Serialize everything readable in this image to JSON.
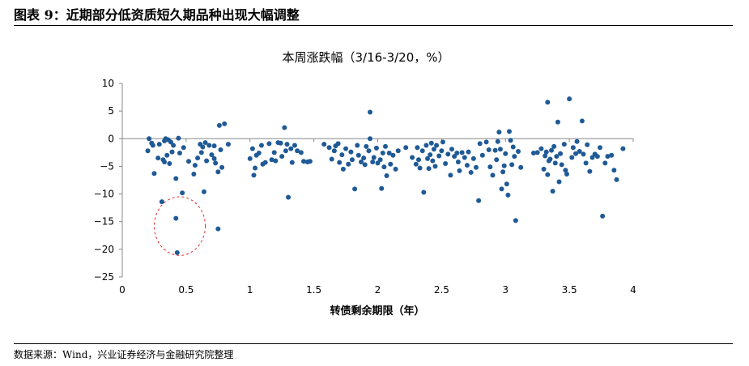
{
  "figure_title": "图表 9：近期部分低资质短久期品种出现大幅调整",
  "source_note": "数据来源：Wind，兴业证券经济与金融研究院整理",
  "chart_data": {
    "type": "scatter",
    "title": "本周涨跌幅（3/16-3/20，%）",
    "xlabel": "转债剩余期限（年）",
    "ylabel": "",
    "xlim": [
      0,
      4
    ],
    "ylim": [
      -25,
      10
    ],
    "xticks": [
      0,
      0.5,
      1,
      1.5,
      2,
      2.5,
      3,
      3.5,
      4
    ],
    "yticks": [
      10,
      5,
      0,
      -5,
      -10,
      -15,
      -20,
      -25
    ],
    "grid": false,
    "marker_color": "#1f5a96",
    "annotation": {
      "shape": "dashed-circle",
      "color": "#e03030",
      "center": [
        0.45,
        -15.8
      ],
      "rx": 0.2,
      "ry": 5.3
    },
    "points": [
      [
        0.2,
        -2.2
      ],
      [
        0.21,
        0.0
      ],
      [
        0.23,
        -0.8
      ],
      [
        0.24,
        -1.2
      ],
      [
        0.25,
        -6.3
      ],
      [
        0.28,
        -3.5
      ],
      [
        0.29,
        -1.0
      ],
      [
        0.31,
        -11.4
      ],
      [
        0.32,
        -3.8
      ],
      [
        0.33,
        -4.2
      ],
      [
        0.33,
        -0.4
      ],
      [
        0.34,
        0.0
      ],
      [
        0.35,
        -3.0
      ],
      [
        0.36,
        -0.2
      ],
      [
        0.37,
        -4.5
      ],
      [
        0.38,
        -0.6
      ],
      [
        0.39,
        -2.4
      ],
      [
        0.4,
        -1.2
      ],
      [
        0.42,
        -14.4
      ],
      [
        0.42,
        -7.2
      ],
      [
        0.43,
        -20.6
      ],
      [
        0.44,
        0.1
      ],
      [
        0.45,
        -2.6
      ],
      [
        0.47,
        -9.8
      ],
      [
        0.48,
        -1.6
      ],
      [
        0.52,
        -4.1
      ],
      [
        0.56,
        -6.4
      ],
      [
        0.57,
        -4.8
      ],
      [
        0.59,
        -3.5
      ],
      [
        0.61,
        -1.0
      ],
      [
        0.62,
        -2.5
      ],
      [
        0.63,
        -1.5
      ],
      [
        0.64,
        -9.6
      ],
      [
        0.65,
        -0.7
      ],
      [
        0.66,
        -4.0
      ],
      [
        0.68,
        -1.2
      ],
      [
        0.7,
        -2.9
      ],
      [
        0.72,
        -1.3
      ],
      [
        0.72,
        -3.6
      ],
      [
        0.73,
        -4.4
      ],
      [
        0.75,
        -16.3
      ],
      [
        0.75,
        -6.0
      ],
      [
        0.76,
        2.4
      ],
      [
        0.77,
        -2.0
      ],
      [
        0.78,
        -5.2
      ],
      [
        0.8,
        2.7
      ],
      [
        0.83,
        -1.0
      ],
      [
        1.0,
        -3.6
      ],
      [
        1.02,
        -1.8
      ],
      [
        1.03,
        -6.6
      ],
      [
        1.04,
        -5.3
      ],
      [
        1.05,
        -3.0
      ],
      [
        1.07,
        -2.6
      ],
      [
        1.09,
        -1.2
      ],
      [
        1.1,
        -4.6
      ],
      [
        1.12,
        -4.3
      ],
      [
        1.15,
        -0.9
      ],
      [
        1.17,
        -3.8
      ],
      [
        1.19,
        -2.5
      ],
      [
        1.2,
        -4.0
      ],
      [
        1.22,
        -0.7
      ],
      [
        1.24,
        -0.8
      ],
      [
        1.25,
        -3.2
      ],
      [
        1.27,
        2.0
      ],
      [
        1.28,
        -2.2
      ],
      [
        1.29,
        -1.0
      ],
      [
        1.3,
        -10.6
      ],
      [
        1.32,
        -1.8
      ],
      [
        1.33,
        -4.3
      ],
      [
        1.35,
        -1.2
      ],
      [
        1.37,
        -2.2
      ],
      [
        1.4,
        -2.5
      ],
      [
        1.42,
        -4.1
      ],
      [
        1.45,
        -4.2
      ],
      [
        1.47,
        -4.1
      ],
      [
        1.58,
        -1.0
      ],
      [
        1.62,
        -1.6
      ],
      [
        1.64,
        -3.7
      ],
      [
        1.66,
        -2.2
      ],
      [
        1.67,
        -1.3
      ],
      [
        1.69,
        -0.9
      ],
      [
        1.7,
        -4.3
      ],
      [
        1.72,
        -2.9
      ],
      [
        1.73,
        -5.5
      ],
      [
        1.75,
        -1.8
      ],
      [
        1.77,
        -4.6
      ],
      [
        1.79,
        -2.4
      ],
      [
        1.8,
        -3.8
      ],
      [
        1.82,
        -9.1
      ],
      [
        1.84,
        -1.2
      ],
      [
        1.85,
        -3.0
      ],
      [
        1.87,
        -4.2
      ],
      [
        1.89,
        -3.5
      ],
      [
        1.9,
        -4.7
      ],
      [
        1.91,
        -1.4
      ],
      [
        1.93,
        -2.2
      ],
      [
        1.94,
        4.8
      ],
      [
        1.94,
        0.0
      ],
      [
        1.96,
        -4.2
      ],
      [
        1.97,
        -3.4
      ],
      [
        1.99,
        -1.7
      ],
      [
        2.0,
        -4.4
      ],
      [
        2.02,
        -3.8
      ],
      [
        2.03,
        -9.0
      ],
      [
        2.04,
        -2.6
      ],
      [
        2.05,
        -5.1
      ],
      [
        2.06,
        -1.4
      ],
      [
        2.07,
        -6.7
      ],
      [
        2.09,
        -2.6
      ],
      [
        2.1,
        -4.6
      ],
      [
        2.12,
        -3.0
      ],
      [
        2.14,
        -5.5
      ],
      [
        2.16,
        -2.2
      ],
      [
        2.22,
        -1.6
      ],
      [
        2.27,
        -3.4
      ],
      [
        2.3,
        -4.6
      ],
      [
        2.31,
        -1.6
      ],
      [
        2.32,
        -3.8
      ],
      [
        2.33,
        -5.3
      ],
      [
        2.35,
        -2.2
      ],
      [
        2.36,
        -9.7
      ],
      [
        2.38,
        -1.2
      ],
      [
        2.39,
        -3.6
      ],
      [
        2.4,
        -5.4
      ],
      [
        2.41,
        -2.9
      ],
      [
        2.42,
        -0.8
      ],
      [
        2.43,
        -4.0
      ],
      [
        2.44,
        -1.9
      ],
      [
        2.45,
        -5.0
      ],
      [
        2.46,
        -1.2
      ],
      [
        2.48,
        -3.1
      ],
      [
        2.5,
        -2.2
      ],
      [
        2.51,
        -0.6
      ],
      [
        2.53,
        -4.5
      ],
      [
        2.55,
        -2.8
      ],
      [
        2.57,
        -6.6
      ],
      [
        2.58,
        -1.9
      ],
      [
        2.6,
        -3.2
      ],
      [
        2.62,
        -2.6
      ],
      [
        2.63,
        -4.2
      ],
      [
        2.64,
        -5.8
      ],
      [
        2.66,
        -2.5
      ],
      [
        2.68,
        -3.4
      ],
      [
        2.7,
        -4.8
      ],
      [
        2.71,
        -2.4
      ],
      [
        2.73,
        -6.1
      ],
      [
        2.75,
        -3.6
      ],
      [
        2.77,
        -5.2
      ],
      [
        2.79,
        -11.2
      ],
      [
        2.8,
        -0.9
      ],
      [
        2.82,
        -3.0
      ],
      [
        2.85,
        -0.6
      ],
      [
        2.87,
        -2.0
      ],
      [
        2.88,
        -5.1
      ],
      [
        2.9,
        -6.6
      ],
      [
        2.92,
        -2.1
      ],
      [
        2.93,
        -3.8
      ],
      [
        2.94,
        -0.5
      ],
      [
        2.95,
        1.2
      ],
      [
        2.96,
        -1.9
      ],
      [
        2.97,
        -9.1
      ],
      [
        2.98,
        -6.0
      ],
      [
        2.99,
        -4.9
      ],
      [
        3.0,
        -2.7
      ],
      [
        3.01,
        -8.2
      ],
      [
        3.02,
        -10.2
      ],
      [
        3.03,
        1.3
      ],
      [
        3.04,
        -0.3
      ],
      [
        3.05,
        -4.7
      ],
      [
        3.06,
        -1.5
      ],
      [
        3.07,
        -3.2
      ],
      [
        3.08,
        -14.8
      ],
      [
        3.1,
        -2.3
      ],
      [
        3.12,
        -5.2
      ],
      [
        3.22,
        -2.6
      ],
      [
        3.25,
        -2.5
      ],
      [
        3.28,
        -1.8
      ],
      [
        3.3,
        -5.5
      ],
      [
        3.31,
        -3.1
      ],
      [
        3.32,
        -2.4
      ],
      [
        3.33,
        -6.5
      ],
      [
        3.34,
        -4.0
      ],
      [
        3.35,
        -3.7
      ],
      [
        3.36,
        -2.1
      ],
      [
        3.37,
        -9.5
      ],
      [
        3.38,
        -1.4
      ],
      [
        3.39,
        -4.4
      ],
      [
        3.4,
        -3.2
      ],
      [
        3.41,
        3.0
      ],
      [
        3.42,
        -7.8
      ],
      [
        3.43,
        -2.7
      ],
      [
        3.44,
        -4.7
      ],
      [
        3.46,
        -1.0
      ],
      [
        3.47,
        -5.7
      ],
      [
        3.48,
        -6.4
      ],
      [
        3.5,
        7.2
      ],
      [
        3.52,
        -3.4
      ],
      [
        3.53,
        -1.6
      ],
      [
        3.55,
        -2.7
      ],
      [
        3.56,
        -0.5
      ],
      [
        3.58,
        -2.3
      ],
      [
        3.6,
        3.2
      ],
      [
        3.61,
        -2.8
      ],
      [
        3.63,
        -4.4
      ],
      [
        3.64,
        -1.1
      ],
      [
        3.66,
        -5.9
      ],
      [
        3.68,
        -3.4
      ],
      [
        3.7,
        -2.8
      ],
      [
        3.72,
        -3.2
      ],
      [
        3.74,
        -1.6
      ],
      [
        3.76,
        -14.0
      ],
      [
        3.78,
        -4.4
      ],
      [
        3.8,
        -3.2
      ],
      [
        3.83,
        -3.0
      ],
      [
        3.85,
        -5.7
      ],
      [
        3.87,
        -7.4
      ],
      [
        3.92,
        -1.8
      ],
      [
        3.33,
        6.6
      ]
    ]
  }
}
